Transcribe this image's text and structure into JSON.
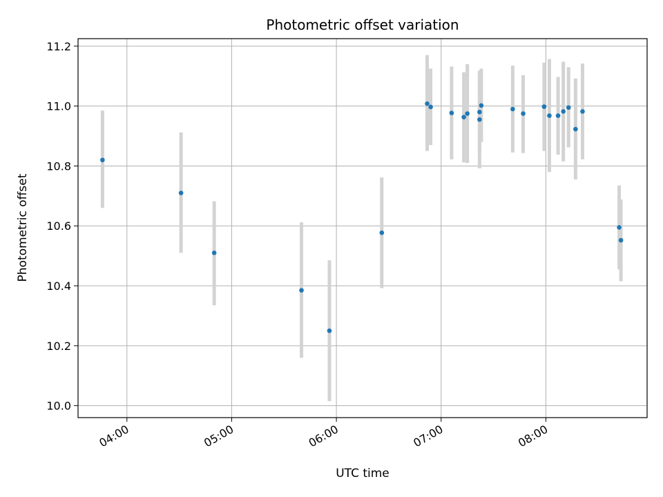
{
  "chart_data": {
    "type": "scatter",
    "title": "Photometric offset variation",
    "xlabel": "UTC time",
    "ylabel": "Photometric offset",
    "xlim": [
      "03:32",
      "08:58"
    ],
    "ylim": [
      9.96,
      11.225
    ],
    "grid": true,
    "x_ticks": [
      "04:00",
      "05:00",
      "06:00",
      "07:00",
      "08:00"
    ],
    "y_ticks": [
      "10.0",
      "10.2",
      "10.4",
      "10.6",
      "10.8",
      "11.0",
      "11.2"
    ],
    "colors": {
      "points": "#1f77b4",
      "errorbars": "#d3d3d3",
      "grid": "#b0b0b0",
      "frame": "#000000"
    },
    "points": [
      {
        "t": "03:46",
        "y": 10.82,
        "lo": 10.66,
        "hi": 10.985
      },
      {
        "t": "04:31",
        "y": 10.71,
        "lo": 10.51,
        "hi": 10.912
      },
      {
        "t": "04:50",
        "y": 10.51,
        "lo": 10.335,
        "hi": 10.682
      },
      {
        "t": "05:40",
        "y": 10.385,
        "lo": 10.16,
        "hi": 10.612
      },
      {
        "t": "05:56",
        "y": 10.25,
        "lo": 10.015,
        "hi": 10.485
      },
      {
        "t": "06:26",
        "y": 10.577,
        "lo": 10.392,
        "hi": 10.762
      },
      {
        "t": "06:52",
        "y": 11.008,
        "lo": 10.85,
        "hi": 11.17
      },
      {
        "t": "06:54",
        "y": 10.997,
        "lo": 10.87,
        "hi": 11.125
      },
      {
        "t": "07:06",
        "y": 10.977,
        "lo": 10.822,
        "hi": 11.132
      },
      {
        "t": "07:13",
        "y": 10.963,
        "lo": 10.812,
        "hi": 11.113
      },
      {
        "t": "07:15",
        "y": 10.975,
        "lo": 10.81,
        "hi": 11.14
      },
      {
        "t": "07:22",
        "y": 10.955,
        "lo": 10.792,
        "hi": 11.118
      },
      {
        "t": "07:22",
        "y": 10.98,
        "lo": 10.85,
        "hi": 11.11
      },
      {
        "t": "07:23",
        "y": 11.002,
        "lo": 10.88,
        "hi": 11.125
      },
      {
        "t": "07:41",
        "y": 10.99,
        "lo": 10.845,
        "hi": 11.135
      },
      {
        "t": "07:47",
        "y": 10.975,
        "lo": 10.843,
        "hi": 11.103
      },
      {
        "t": "07:59",
        "y": 10.998,
        "lo": 10.85,
        "hi": 11.145
      },
      {
        "t": "08:02",
        "y": 10.968,
        "lo": 10.78,
        "hi": 11.157
      },
      {
        "t": "08:07",
        "y": 10.968,
        "lo": 10.838,
        "hi": 11.097
      },
      {
        "t": "08:10",
        "y": 10.982,
        "lo": 10.815,
        "hi": 11.148
      },
      {
        "t": "08:13",
        "y": 10.995,
        "lo": 10.862,
        "hi": 11.13
      },
      {
        "t": "08:17",
        "y": 10.923,
        "lo": 10.755,
        "hi": 11.092
      },
      {
        "t": "08:21",
        "y": 10.982,
        "lo": 10.822,
        "hi": 11.142
      },
      {
        "t": "08:42",
        "y": 10.595,
        "lo": 10.455,
        "hi": 10.735
      },
      {
        "t": "08:43",
        "y": 10.552,
        "lo": 10.415,
        "hi": 10.688
      }
    ]
  }
}
